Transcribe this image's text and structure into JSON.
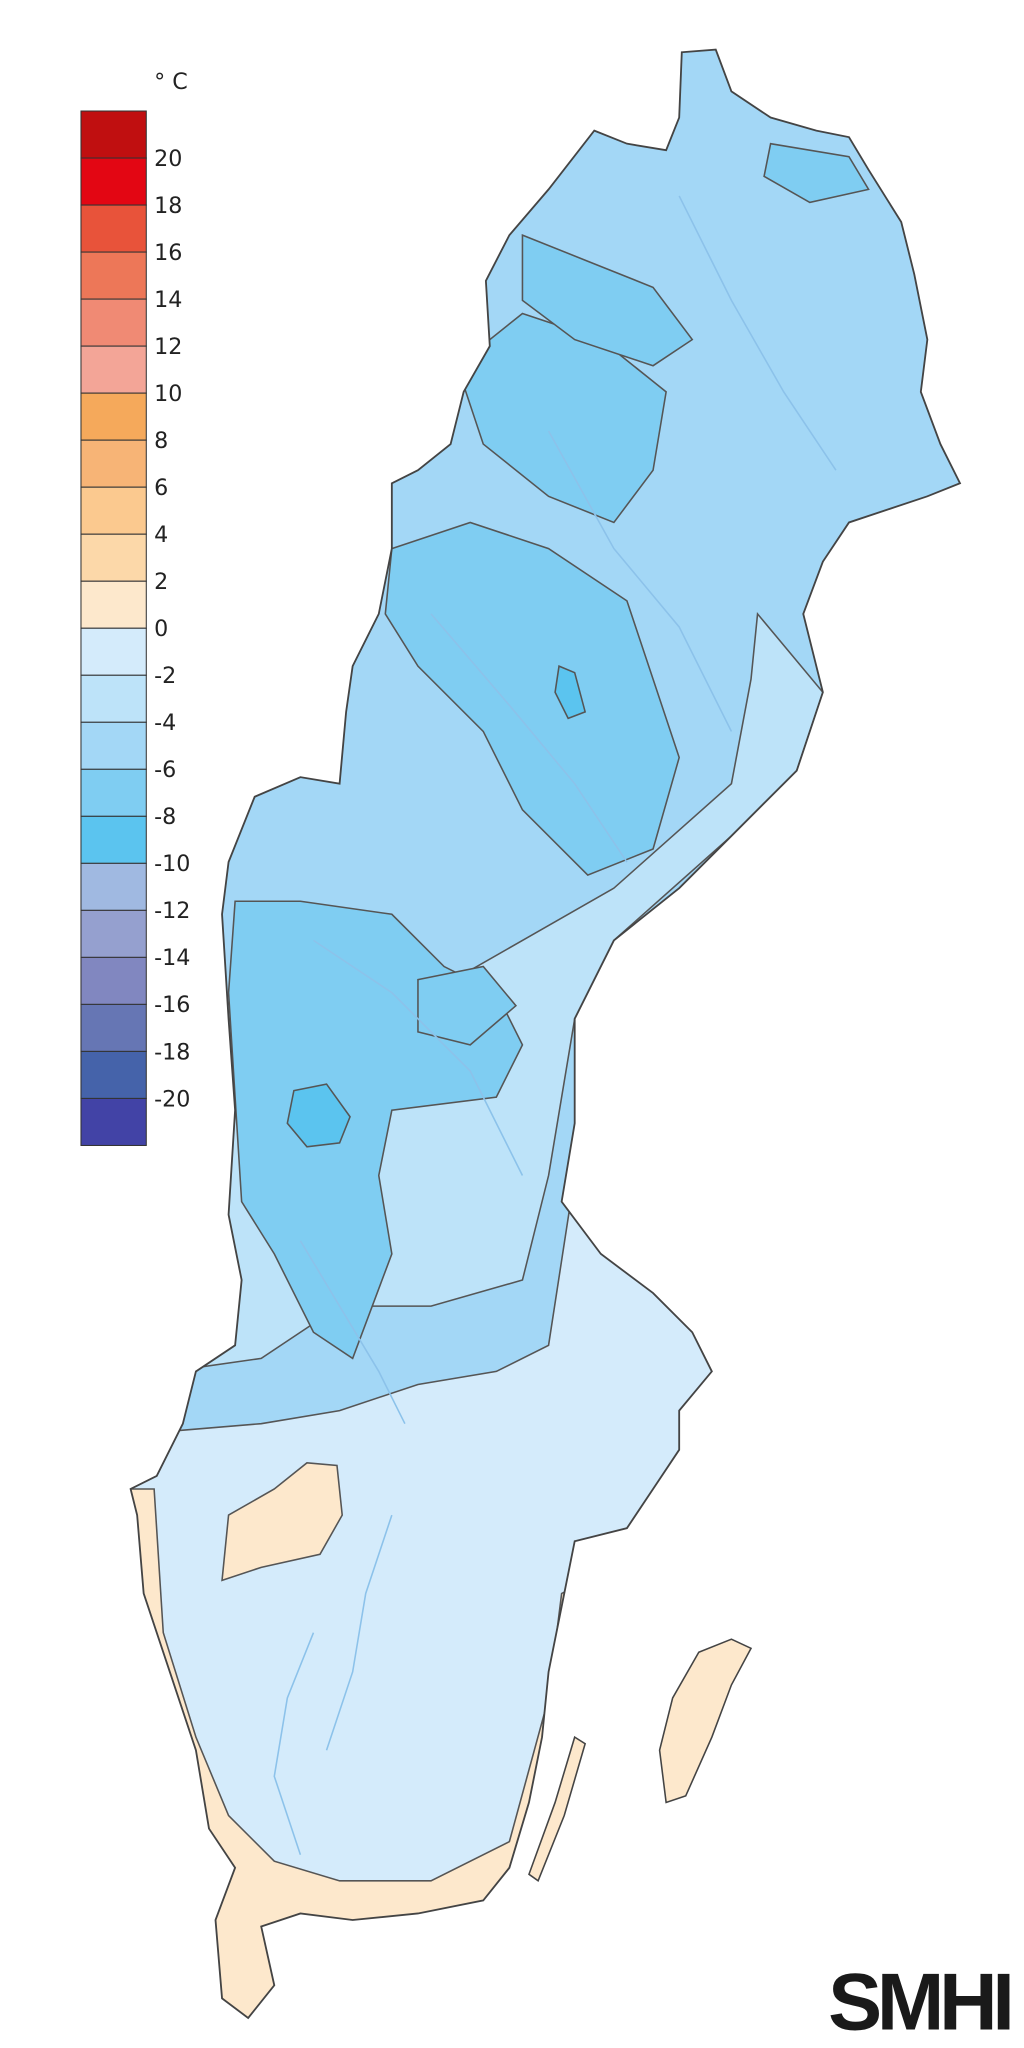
{
  "legend": {
    "unit": "° C",
    "bins": [
      {
        "label": "20",
        "color": "#c00f10"
      },
      {
        "label": "18",
        "color": "#e30613"
      },
      {
        "label": "16",
        "color": "#e8533a"
      },
      {
        "label": "14",
        "color": "#ed7758"
      },
      {
        "label": "12",
        "color": "#f08a74"
      },
      {
        "label": "10",
        "color": "#f3a597"
      },
      {
        "label": "8",
        "color": "#f5a95b"
      },
      {
        "label": "6",
        "color": "#f7b476"
      },
      {
        "label": "4",
        "color": "#fbc98f"
      },
      {
        "label": "2",
        "color": "#fcd8a9"
      },
      {
        "label": "0",
        "color": "#fde8cc"
      },
      {
        "label": "-2",
        "color": "#d4ebfb"
      },
      {
        "label": "-4",
        "color": "#bde3f9"
      },
      {
        "label": "-6",
        "color": "#a3d7f6"
      },
      {
        "label": "-8",
        "color": "#7fcdf2"
      },
      {
        "label": "-10",
        "color": "#5bc4ef"
      },
      {
        "label": "-12",
        "color": "#a0b9e1"
      },
      {
        "label": "-14",
        "color": "#95a0cf"
      },
      {
        "label": "-16",
        "color": "#8187c0"
      },
      {
        "label": "-18",
        "color": "#6676b4"
      },
      {
        "label": "-20",
        "color": "#4563aa"
      },
      {
        "label": "",
        "color": "#4243a6"
      }
    ]
  },
  "map": {
    "colors": {
      "cold": "#7fcdf2",
      "mid": "#a3d7f6",
      "mild": "#d4ebfb",
      "warm": "#fde8cc",
      "outline": "#555555",
      "river": "#8cc2ea"
    }
  },
  "logo": "SMHI"
}
